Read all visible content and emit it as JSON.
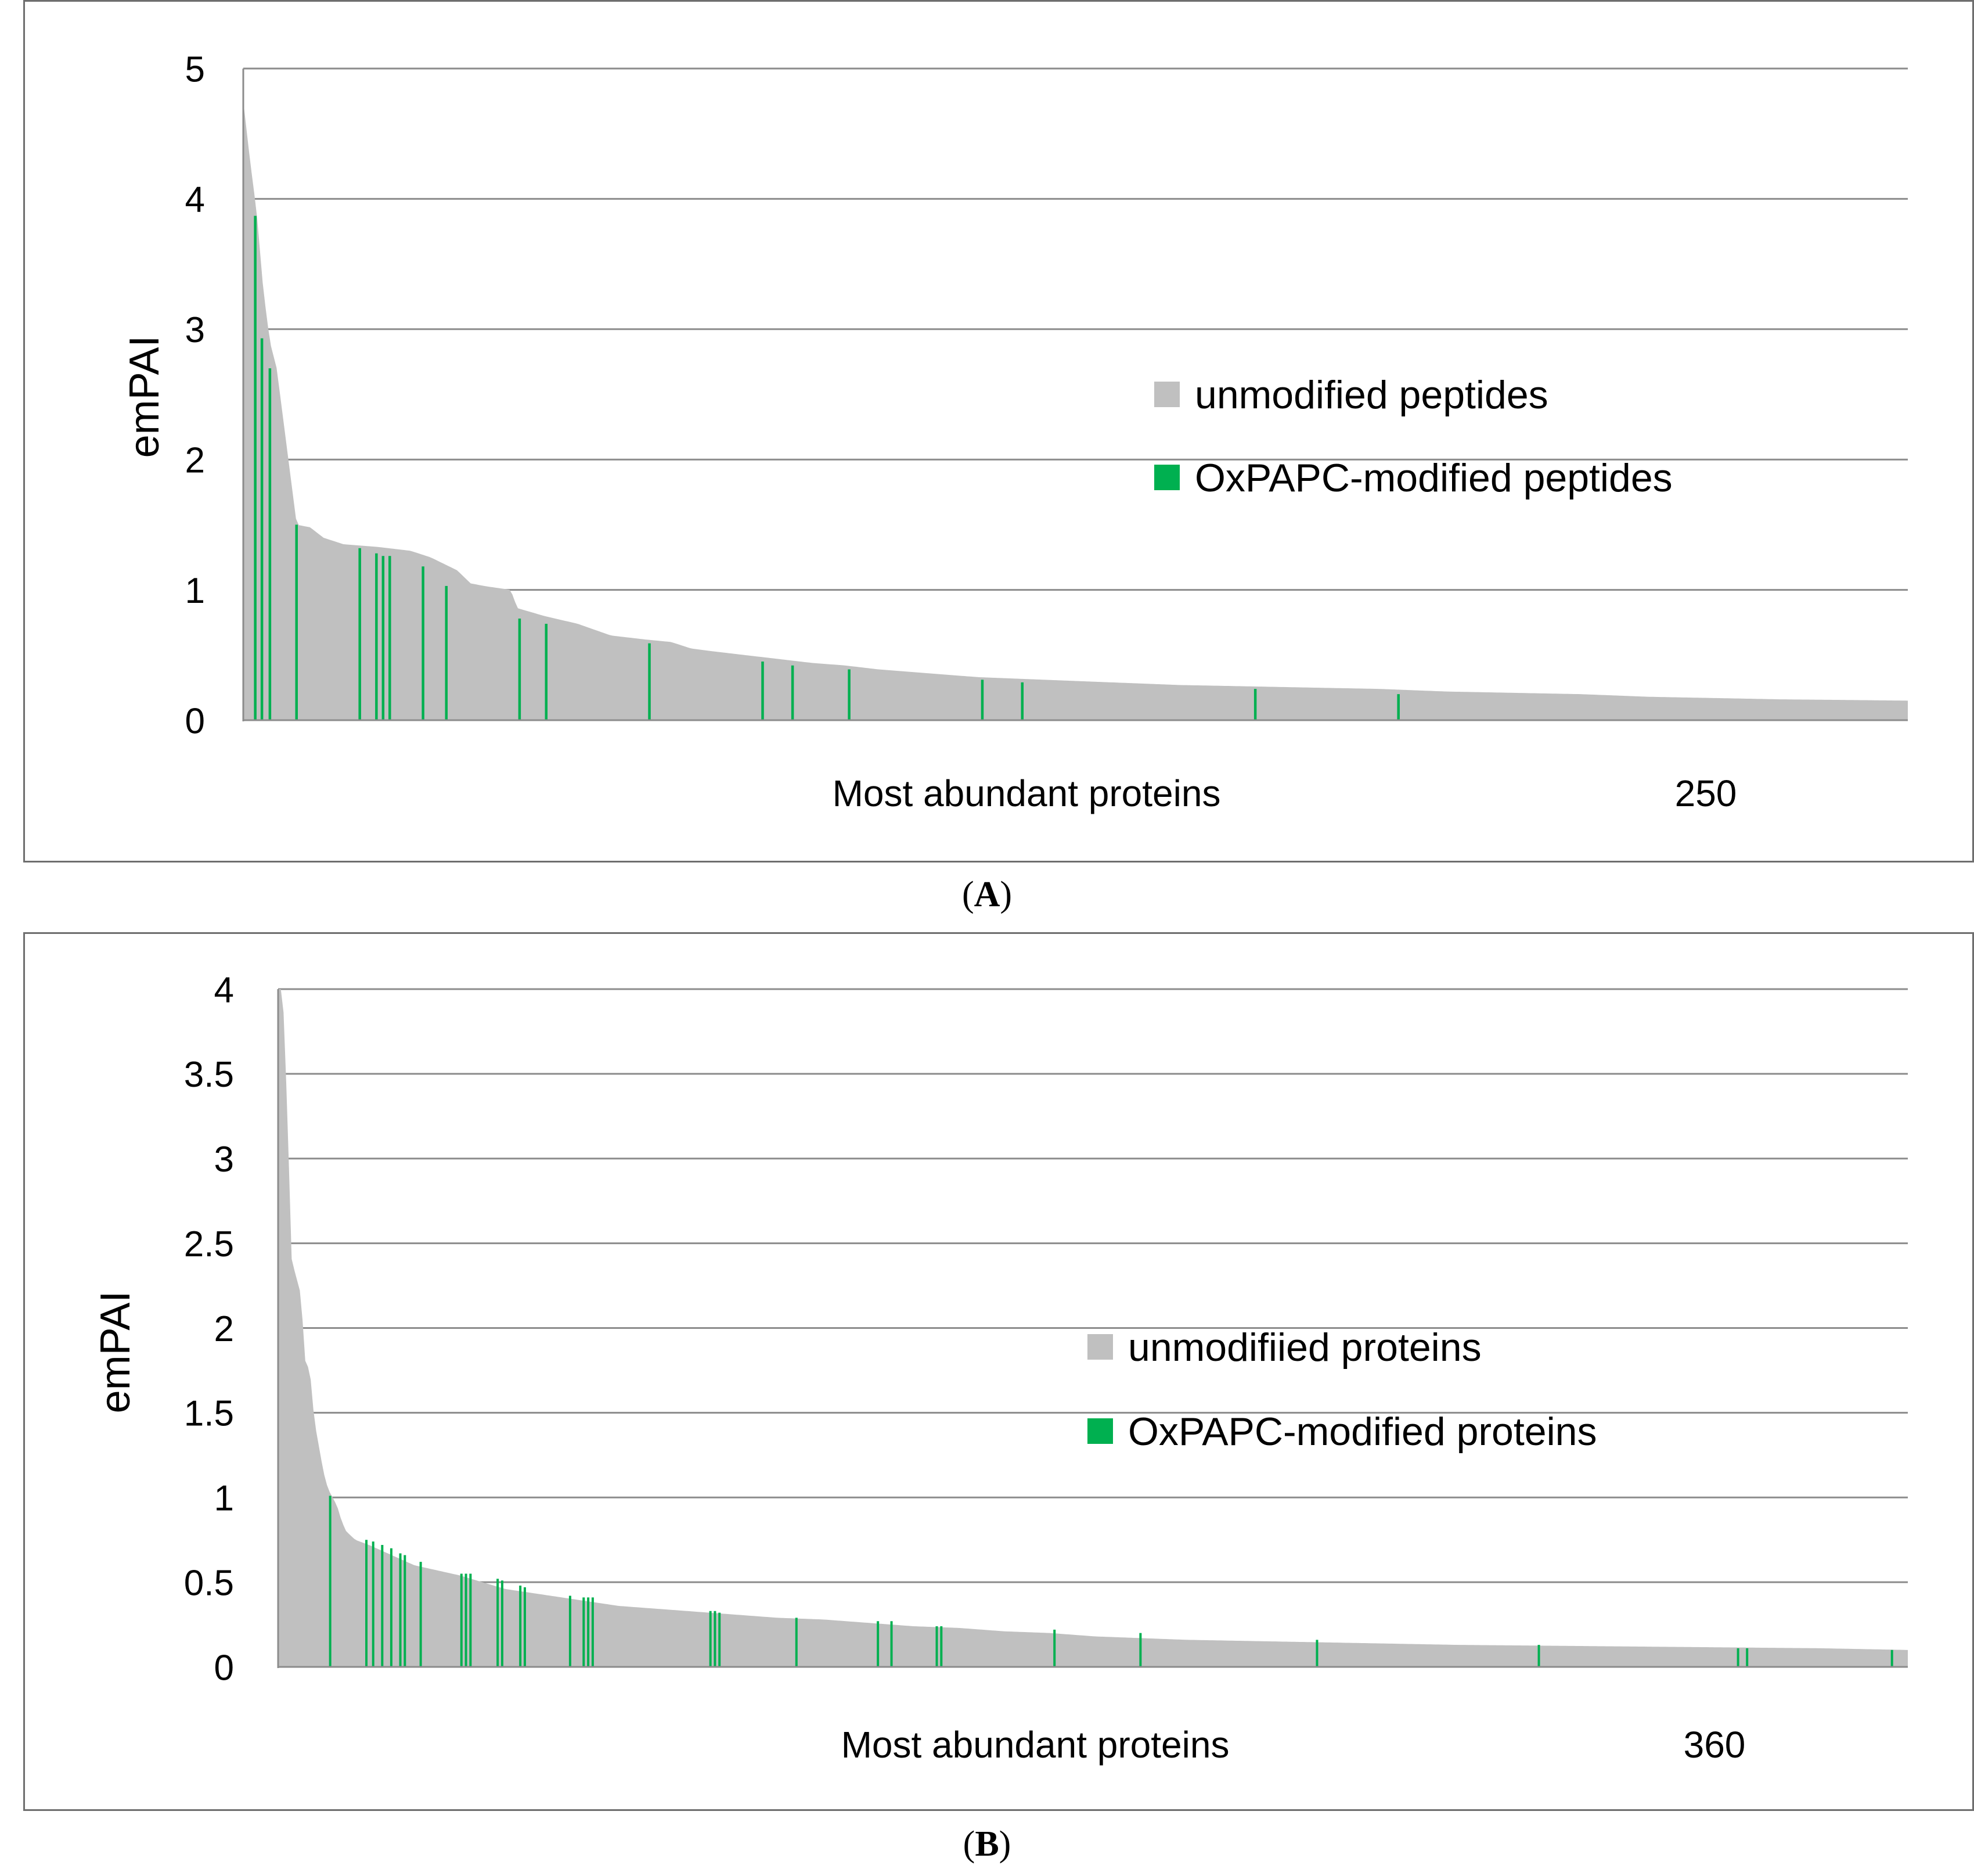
{
  "chart_data": [
    {
      "id": "A",
      "type": "bar",
      "title": "",
      "ylabel": "emPAI",
      "xlabel": "Most abundant proteins",
      "x_end_label": "250",
      "n_items": 250,
      "ylim": [
        0,
        5
      ],
      "yticks": [
        "0",
        "1",
        "2",
        "3",
        "4",
        "5"
      ],
      "grid": true,
      "legend_position": "center-right",
      "legend": [
        {
          "label": "unmodified peptides",
          "color": "#c0c0c0"
        },
        {
          "label": "OxPAPC-modified peptides",
          "color": "#00b050"
        }
      ],
      "unmodified_profile": [
        [
          0,
          4.75
        ],
        [
          1,
          4.3
        ],
        [
          2,
          3.9
        ],
        [
          3,
          3.3
        ],
        [
          4,
          2.9
        ],
        [
          5,
          2.7
        ],
        [
          6,
          2.3
        ],
        [
          7,
          1.9
        ],
        [
          8,
          1.5
        ],
        [
          10,
          1.48
        ],
        [
          12,
          1.4
        ],
        [
          15,
          1.35
        ],
        [
          20,
          1.33
        ],
        [
          25,
          1.3
        ],
        [
          28,
          1.25
        ],
        [
          30,
          1.2
        ],
        [
          32,
          1.15
        ],
        [
          34,
          1.05
        ],
        [
          36,
          1.03
        ],
        [
          40,
          1.0
        ],
        [
          41,
          0.86
        ],
        [
          45,
          0.8
        ],
        [
          50,
          0.74
        ],
        [
          55,
          0.65
        ],
        [
          60,
          0.62
        ],
        [
          64,
          0.6
        ],
        [
          67,
          0.55
        ],
        [
          70,
          0.53
        ],
        [
          75,
          0.5
        ],
        [
          80,
          0.47
        ],
        [
          85,
          0.44
        ],
        [
          90,
          0.42
        ],
        [
          95,
          0.39
        ],
        [
          100,
          0.37
        ],
        [
          105,
          0.35
        ],
        [
          110,
          0.33
        ],
        [
          120,
          0.31
        ],
        [
          130,
          0.29
        ],
        [
          140,
          0.27
        ],
        [
          150,
          0.26
        ],
        [
          160,
          0.25
        ],
        [
          170,
          0.24
        ],
        [
          180,
          0.22
        ],
        [
          190,
          0.21
        ],
        [
          200,
          0.2
        ],
        [
          210,
          0.18
        ],
        [
          220,
          0.17
        ],
        [
          230,
          0.16
        ],
        [
          240,
          0.155
        ],
        [
          249,
          0.15
        ]
      ],
      "modified_bars": [
        {
          "rank": 1.3,
          "value": 3.87
        },
        {
          "rank": 2.3,
          "value": 2.93
        },
        {
          "rank": 3.5,
          "value": 2.7
        },
        {
          "rank": 7.5,
          "value": 1.5
        },
        {
          "rank": 17,
          "value": 1.32
        },
        {
          "rank": 19.5,
          "value": 1.28
        },
        {
          "rank": 20.5,
          "value": 1.26
        },
        {
          "rank": 21.5,
          "value": 1.26
        },
        {
          "rank": 26.5,
          "value": 1.18
        },
        {
          "rank": 30,
          "value": 1.03
        },
        {
          "rank": 41,
          "value": 0.78
        },
        {
          "rank": 45,
          "value": 0.74
        },
        {
          "rank": 60.5,
          "value": 0.59
        },
        {
          "rank": 77.5,
          "value": 0.45
        },
        {
          "rank": 82,
          "value": 0.42
        },
        {
          "rank": 90.5,
          "value": 0.39
        },
        {
          "rank": 110.5,
          "value": 0.31
        },
        {
          "rank": 116.5,
          "value": 0.29
        },
        {
          "rank": 151.5,
          "value": 0.24
        },
        {
          "rank": 173,
          "value": 0.2
        }
      ]
    },
    {
      "id": "B",
      "type": "bar",
      "title": "",
      "ylabel": "emPAI",
      "xlabel": "Most abundant proteins",
      "x_end_label": "360",
      "n_items": 360,
      "ylim": [
        0,
        4
      ],
      "yticks": [
        "0",
        "0.5",
        "1",
        "1.5",
        "2",
        "2.5",
        "3",
        "3.5",
        "4"
      ],
      "grid": true,
      "legend_position": "center-right",
      "legend": [
        {
          "label": "unmodifiied proteins",
          "color": "#c0c0c0"
        },
        {
          "label": "OxPAPC-modified proteins",
          "color": "#00b050"
        }
      ],
      "unmodified_profile": [
        [
          0,
          4.0
        ],
        [
          1,
          4.0
        ],
        [
          2,
          3.3
        ],
        [
          3,
          2.4
        ],
        [
          4,
          2.3
        ],
        [
          5,
          2.2
        ],
        [
          6,
          1.8
        ],
        [
          7,
          1.75
        ],
        [
          8,
          1.45
        ],
        [
          9,
          1.3
        ],
        [
          10,
          1.15
        ],
        [
          11,
          1.05
        ],
        [
          12,
          1.0
        ],
        [
          13,
          0.95
        ],
        [
          14,
          0.86
        ],
        [
          15,
          0.8
        ],
        [
          17,
          0.75
        ],
        [
          20,
          0.72
        ],
        [
          25,
          0.66
        ],
        [
          30,
          0.6
        ],
        [
          35,
          0.57
        ],
        [
          40,
          0.54
        ],
        [
          45,
          0.5
        ],
        [
          50,
          0.46
        ],
        [
          55,
          0.44
        ],
        [
          60,
          0.42
        ],
        [
          65,
          0.4
        ],
        [
          70,
          0.38
        ],
        [
          75,
          0.36
        ],
        [
          80,
          0.35
        ],
        [
          90,
          0.33
        ],
        [
          100,
          0.31
        ],
        [
          110,
          0.29
        ],
        [
          120,
          0.28
        ],
        [
          130,
          0.26
        ],
        [
          140,
          0.24
        ],
        [
          150,
          0.23
        ],
        [
          160,
          0.21
        ],
        [
          170,
          0.2
        ],
        [
          180,
          0.18
        ],
        [
          190,
          0.17
        ],
        [
          200,
          0.16
        ],
        [
          220,
          0.15
        ],
        [
          240,
          0.14
        ],
        [
          260,
          0.13
        ],
        [
          280,
          0.125
        ],
        [
          300,
          0.12
        ],
        [
          320,
          0.115
        ],
        [
          340,
          0.11
        ],
        [
          359,
          0.1
        ]
      ],
      "modified_bars": [
        {
          "rank": 11,
          "value": 1.01
        },
        {
          "rank": 19,
          "value": 0.75
        },
        {
          "rank": 20.5,
          "value": 0.74
        },
        {
          "rank": 22.5,
          "value": 0.72
        },
        {
          "rank": 24.5,
          "value": 0.7
        },
        {
          "rank": 26.5,
          "value": 0.67
        },
        {
          "rank": 27.5,
          "value": 0.66
        },
        {
          "rank": 31,
          "value": 0.62
        },
        {
          "rank": 40,
          "value": 0.55
        },
        {
          "rank": 41,
          "value": 0.55
        },
        {
          "rank": 42,
          "value": 0.55
        },
        {
          "rank": 48,
          "value": 0.52
        },
        {
          "rank": 49,
          "value": 0.51
        },
        {
          "rank": 53,
          "value": 0.48
        },
        {
          "rank": 54,
          "value": 0.47
        },
        {
          "rank": 64,
          "value": 0.42
        },
        {
          "rank": 67,
          "value": 0.41
        },
        {
          "rank": 68,
          "value": 0.41
        },
        {
          "rank": 69,
          "value": 0.41
        },
        {
          "rank": 95,
          "value": 0.33
        },
        {
          "rank": 96,
          "value": 0.33
        },
        {
          "rank": 97,
          "value": 0.32
        },
        {
          "rank": 114,
          "value": 0.29
        },
        {
          "rank": 132,
          "value": 0.27
        },
        {
          "rank": 135,
          "value": 0.27
        },
        {
          "rank": 145,
          "value": 0.24
        },
        {
          "rank": 146,
          "value": 0.24
        },
        {
          "rank": 171,
          "value": 0.22
        },
        {
          "rank": 190,
          "value": 0.2
        },
        {
          "rank": 229,
          "value": 0.16
        },
        {
          "rank": 278,
          "value": 0.13
        },
        {
          "rank": 322,
          "value": 0.11
        },
        {
          "rank": 324,
          "value": 0.11
        },
        {
          "rank": 356,
          "value": 0.1
        }
      ]
    }
  ],
  "captions": {
    "a_open": "(",
    "a_letter": "A",
    "a_close": ")",
    "b_open": "(",
    "b_letter": "B",
    "b_close": ")"
  }
}
